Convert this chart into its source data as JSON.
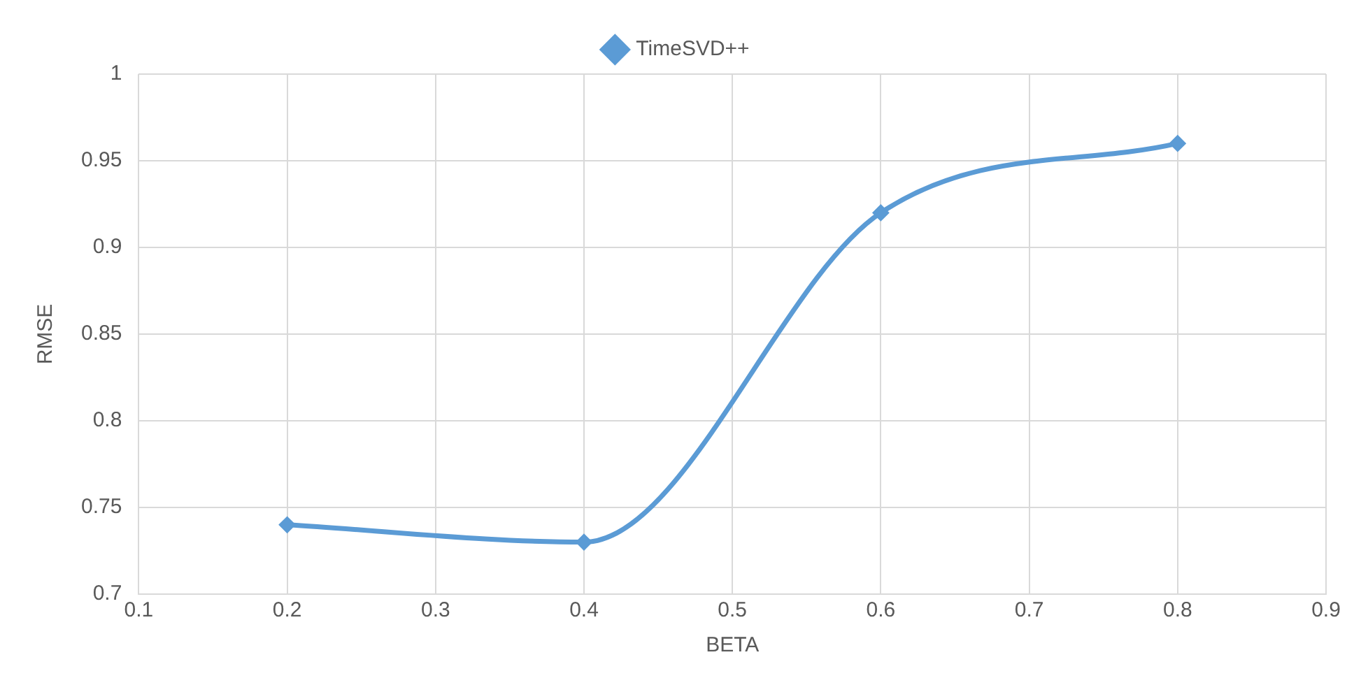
{
  "chart_data": {
    "type": "line",
    "xlabel": "BETA",
    "ylabel": "RMSE",
    "x": [
      0.2,
      0.4,
      0.6,
      0.8
    ],
    "series": [
      {
        "name": "TimeSVD++",
        "color": "#5b9bd5",
        "values": [
          0.74,
          0.73,
          0.92,
          0.96
        ]
      }
    ],
    "xlim": [
      0.1,
      0.9
    ],
    "xticks": [
      0.1,
      0.2,
      0.3,
      0.4,
      0.5,
      0.6,
      0.7,
      0.8,
      0.9
    ],
    "ylim": [
      0.7,
      1
    ],
    "yticks": [
      0.7,
      0.75,
      0.8,
      0.85,
      0.9,
      0.95,
      1
    ],
    "grid": true,
    "legend": "top",
    "marker": "diamond",
    "line_style": "solid"
  }
}
